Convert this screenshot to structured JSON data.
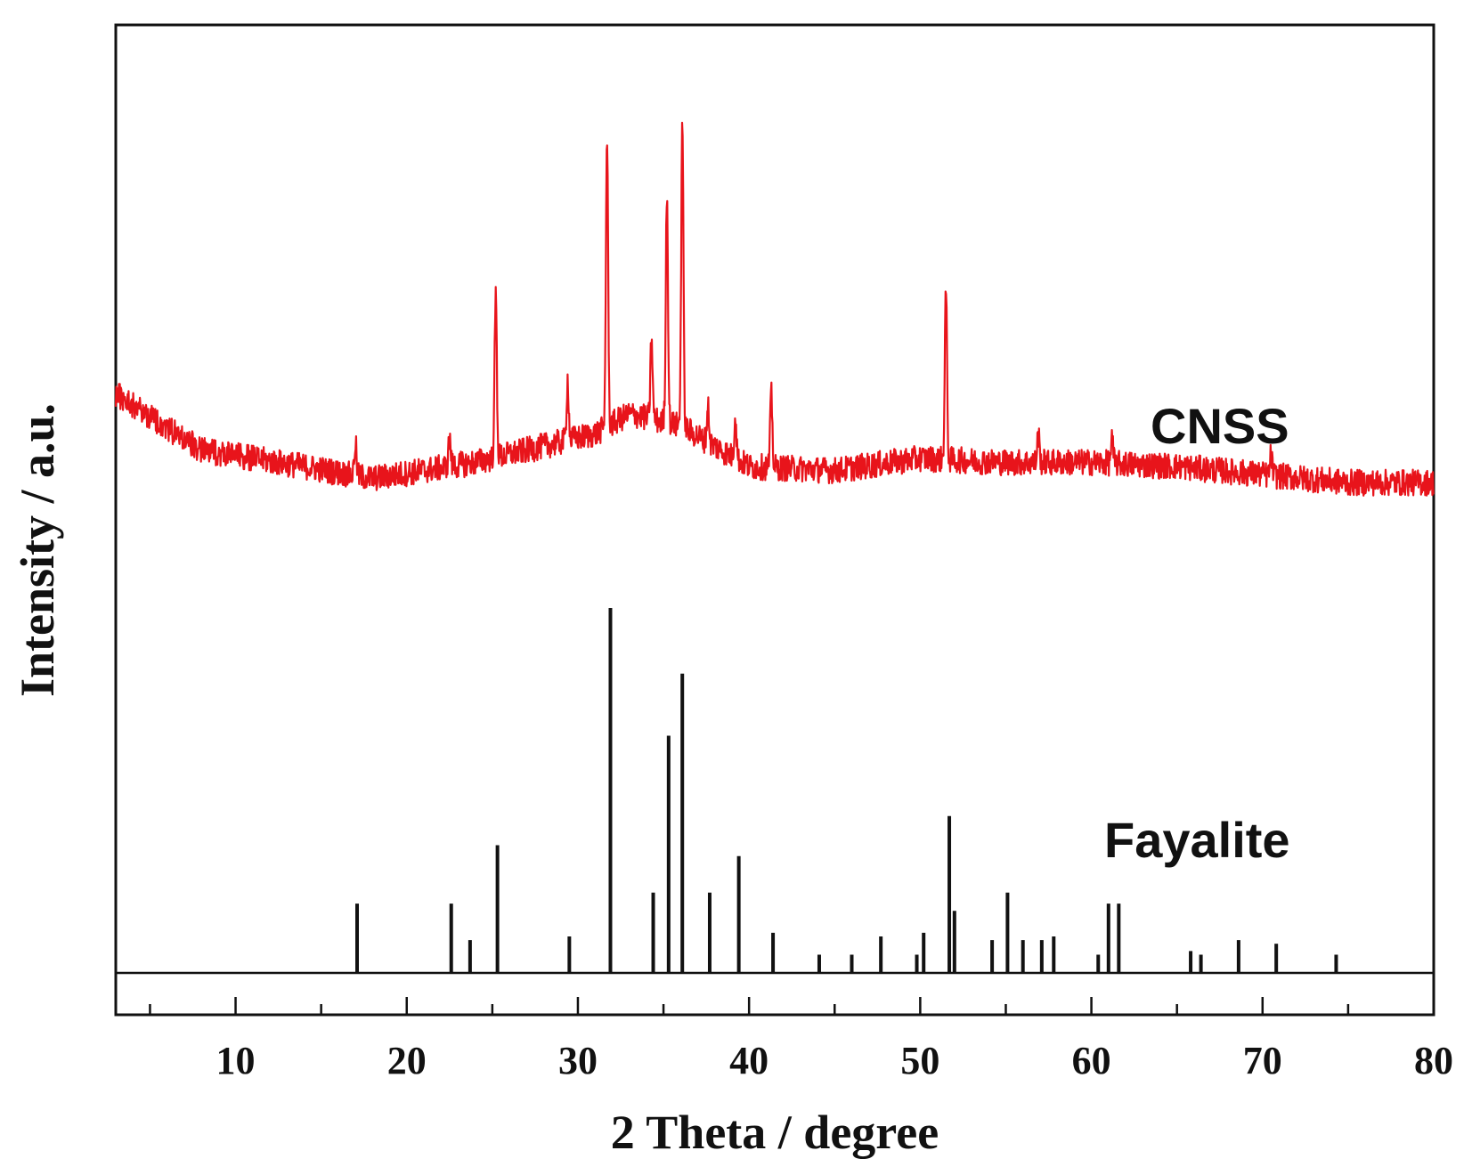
{
  "chart_data": {
    "type": "line",
    "title": "",
    "xlabel": "2 Theta / degree",
    "ylabel": "Intensity / a.u.",
    "xlim": [
      3,
      80
    ],
    "xticks": [
      10,
      20,
      30,
      40,
      50,
      60,
      70,
      80
    ],
    "grid": false,
    "legend": "none",
    "series": [
      {
        "name": "CNSS",
        "color": "#e8141b",
        "baseline": [
          [
            3,
            0.38
          ],
          [
            8,
            0.24
          ],
          [
            14,
            0.2
          ],
          [
            18,
            0.17
          ],
          [
            24,
            0.21
          ],
          [
            28,
            0.25
          ],
          [
            31,
            0.28
          ],
          [
            33,
            0.33
          ],
          [
            36,
            0.3
          ],
          [
            40,
            0.2
          ],
          [
            45,
            0.19
          ],
          [
            50,
            0.22
          ],
          [
            55,
            0.21
          ],
          [
            60,
            0.21
          ],
          [
            65,
            0.2
          ],
          [
            70,
            0.18
          ],
          [
            75,
            0.16
          ],
          [
            80,
            0.16
          ]
        ],
        "peaks": [
          [
            17.0,
            0.08
          ],
          [
            22.5,
            0.07
          ],
          [
            25.2,
            0.4
          ],
          [
            29.4,
            0.15
          ],
          [
            31.7,
            0.72
          ],
          [
            34.3,
            0.2
          ],
          [
            35.2,
            0.57
          ],
          [
            36.1,
            0.76
          ],
          [
            37.6,
            0.09
          ],
          [
            39.2,
            0.11
          ],
          [
            41.3,
            0.18
          ],
          [
            51.5,
            0.42
          ],
          [
            56.9,
            0.07
          ],
          [
            61.2,
            0.06
          ],
          [
            70.5,
            0.05
          ]
        ]
      },
      {
        "name": "Fayalite",
        "color": "#111111",
        "sticks": [
          [
            17.1,
            0.19
          ],
          [
            22.6,
            0.19
          ],
          [
            23.7,
            0.09
          ],
          [
            25.3,
            0.35
          ],
          [
            29.5,
            0.1
          ],
          [
            31.9,
            1.0
          ],
          [
            34.4,
            0.22
          ],
          [
            35.3,
            0.65
          ],
          [
            36.1,
            0.82
          ],
          [
            37.7,
            0.22
          ],
          [
            39.4,
            0.32
          ],
          [
            41.4,
            0.11
          ],
          [
            44.1,
            0.05
          ],
          [
            46.0,
            0.05
          ],
          [
            47.7,
            0.1
          ],
          [
            49.8,
            0.05
          ],
          [
            50.2,
            0.11
          ],
          [
            51.7,
            0.43
          ],
          [
            52.0,
            0.17
          ],
          [
            54.2,
            0.09
          ],
          [
            55.1,
            0.22
          ],
          [
            56.0,
            0.09
          ],
          [
            57.1,
            0.09
          ],
          [
            57.8,
            0.1
          ],
          [
            60.4,
            0.05
          ],
          [
            61.0,
            0.19
          ],
          [
            61.6,
            0.19
          ],
          [
            65.8,
            0.06
          ],
          [
            66.4,
            0.05
          ],
          [
            68.6,
            0.09
          ],
          [
            70.8,
            0.08
          ],
          [
            74.3,
            0.05
          ]
        ]
      }
    ]
  }
}
